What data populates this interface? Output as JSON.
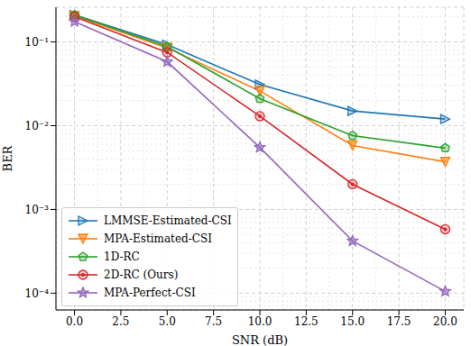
{
  "chart_data": {
    "type": "line",
    "x_label": "SNR (dB)",
    "y_label": "BER",
    "x": [
      0,
      5,
      10,
      15,
      20
    ],
    "series": [
      {
        "name": "LMMSE-Estimated-CSI",
        "color": "#1f77b4",
        "marker": "triangle-right",
        "values": [
          0.21,
          0.093,
          0.031,
          0.015,
          0.012
        ]
      },
      {
        "name": "MPA-Estimated-CSI",
        "color": "#ff7f0e",
        "marker": "triangle-down",
        "values": [
          0.205,
          0.085,
          0.026,
          0.0058,
          0.0037
        ]
      },
      {
        "name": "1D-RC",
        "color": "#2ca02c",
        "marker": "pentagon",
        "values": [
          0.21,
          0.088,
          0.021,
          0.0076,
          0.0054
        ]
      },
      {
        "name": "2D-RC (Ours)",
        "color": "#d62728",
        "marker": "circle",
        "values": [
          0.2,
          0.075,
          0.013,
          0.002,
          0.00058
        ]
      },
      {
        "name": "MPA-Perfect-CSI",
        "color": "#9467bd",
        "marker": "star",
        "values": [
          0.175,
          0.058,
          0.0055,
          0.00042,
          0.000105
        ]
      }
    ],
    "xlim": [
      -1,
      21
    ],
    "xticks": [
      {
        "value": 0,
        "label": "0.0"
      },
      {
        "value": 2.5,
        "label": "2.5"
      },
      {
        "value": 5,
        "label": "5.0"
      },
      {
        "value": 7.5,
        "label": "7.5"
      },
      {
        "value": 10,
        "label": "10.0"
      },
      {
        "value": 12.5,
        "label": "12.5"
      },
      {
        "value": 15,
        "label": "15.0"
      },
      {
        "value": 17.5,
        "label": "17.5"
      },
      {
        "value": 20,
        "label": "20.0"
      }
    ],
    "ylim": [
      6.3e-05,
      0.26
    ],
    "yticks": [
      {
        "value": 0.0001,
        "label": "10⁻⁴"
      },
      {
        "value": 0.001,
        "label": "10⁻³"
      },
      {
        "value": 0.01,
        "label": "10⁻²"
      },
      {
        "value": 0.1,
        "label": "10⁻¹"
      }
    ],
    "log": "y",
    "grid": true,
    "legend": "lower left"
  }
}
